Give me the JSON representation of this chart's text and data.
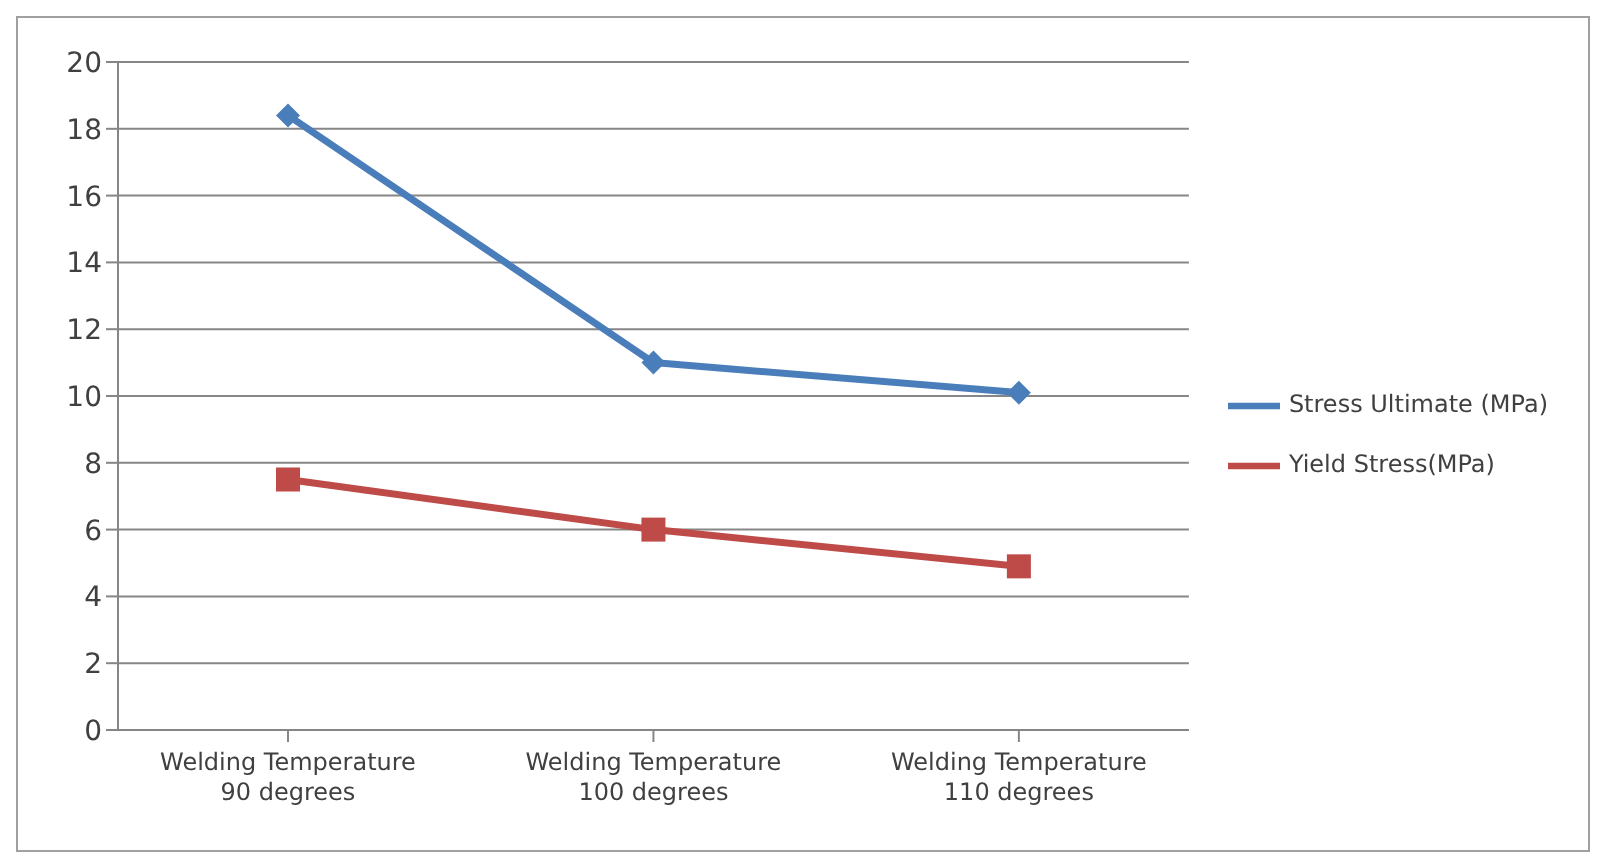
{
  "chart_data": {
    "type": "line",
    "categories": [
      "Welding Temperature 90 degrees",
      "Welding Temperature 100 degrees",
      "Welding Temperature 110 degrees"
    ],
    "series": [
      {
        "name": "Stress Ultimate (MPa)",
        "color": "#4a7ebb",
        "values": [
          18.4,
          11.0,
          10.1
        ],
        "marker": "diamond"
      },
      {
        "name": "Yield Stress(MPa)",
        "color": "#be4b48",
        "values": [
          7.5,
          6.0,
          4.9
        ],
        "marker": "square"
      }
    ],
    "ylim": [
      0,
      20
    ],
    "yticks": [
      0,
      2,
      4,
      6,
      8,
      10,
      12,
      14,
      16,
      18,
      20
    ],
    "grid": "y",
    "legend": "right",
    "line_style": "solid"
  }
}
